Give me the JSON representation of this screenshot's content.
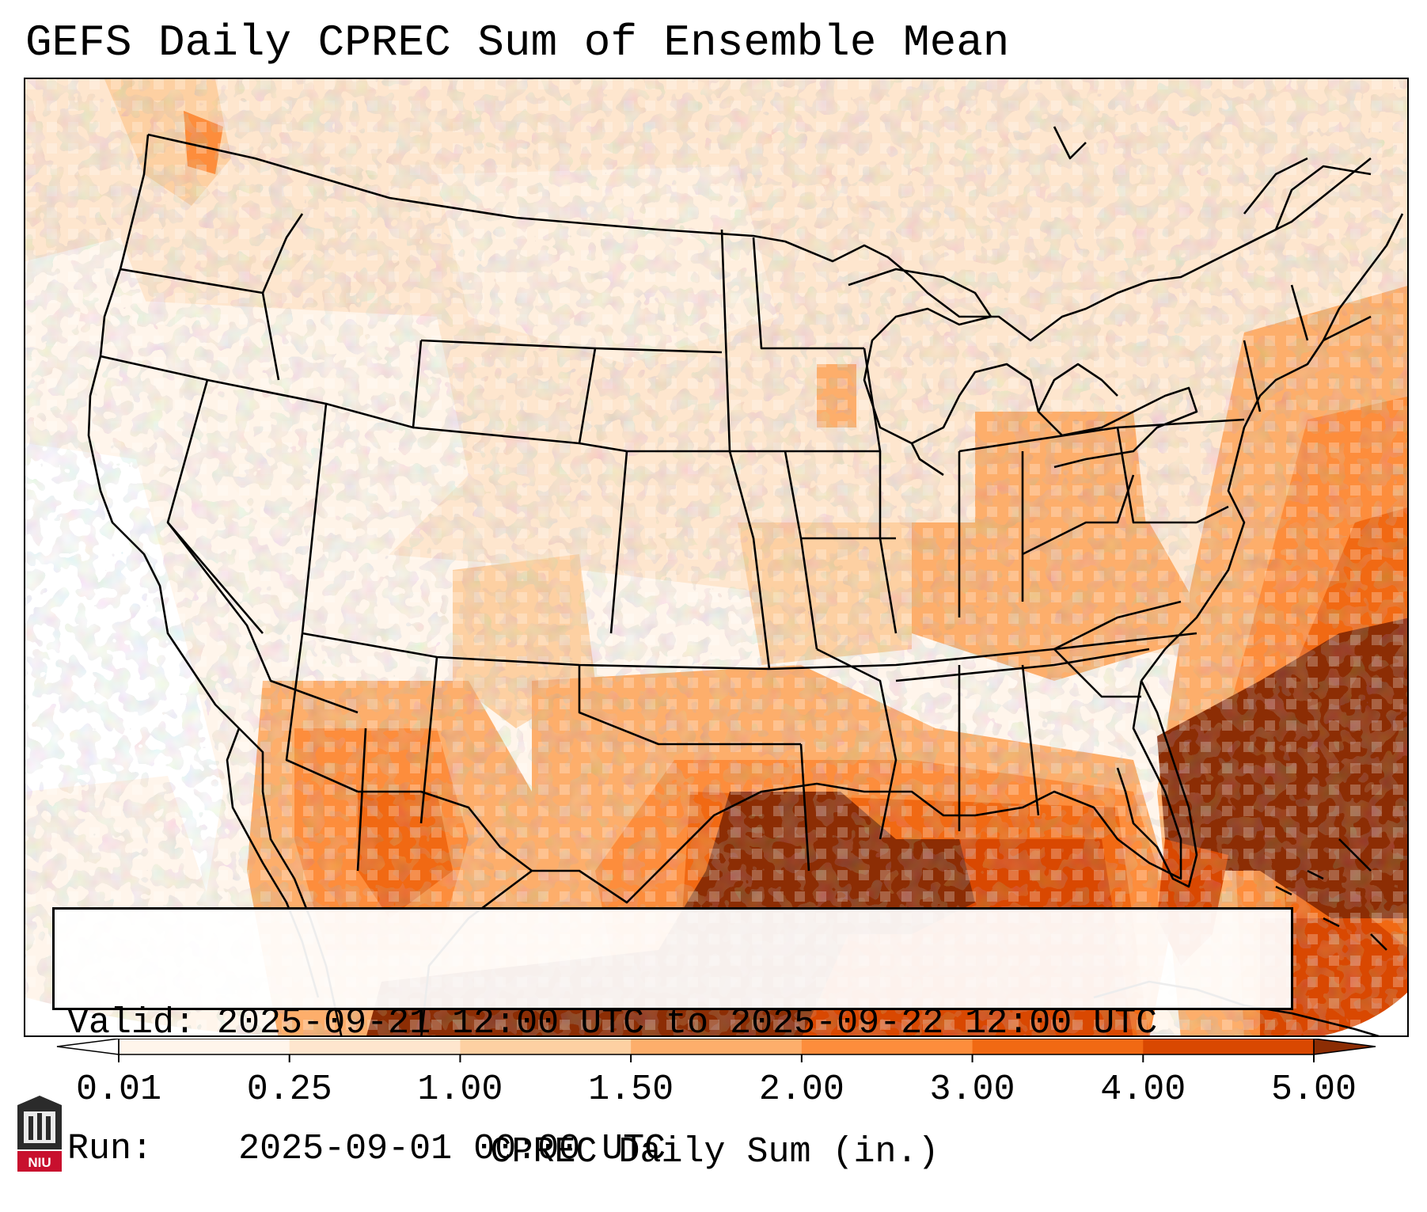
{
  "title": "GEFS Daily CPREC Sum of Ensemble Mean",
  "info": {
    "valid_label": "Valid:",
    "valid_value": "2025-09-21 12:00 UTC to 2025-09-22 12:00 UTC",
    "run_label": "Run:",
    "run_value": "2025-09-01 00:00 UTC"
  },
  "colorbar": {
    "label": "CPREC Daily Sum (in.)",
    "ticks": [
      "0.01",
      "0.25",
      "1.00",
      "1.50",
      "2.00",
      "3.00",
      "4.00",
      "5.00"
    ],
    "bins": [
      {
        "color": "#fff5eb"
      },
      {
        "color": "#fee6ce"
      },
      {
        "color": "#fdd0a2"
      },
      {
        "color": "#fdae6b"
      },
      {
        "color": "#fd8d3c"
      },
      {
        "color": "#f16913"
      },
      {
        "color": "#d94801"
      }
    ],
    "under_color": "#ffffff",
    "over_color": "#8c2d04"
  },
  "map": {
    "region": "Contiguous United States, northern Mexico, Gulf of Mexico, western Atlantic",
    "palette": {
      "very_light": "#fff5eb",
      "light": "#fee6ce",
      "light_orange": "#fdd0a2",
      "orange": "#fdae6b",
      "medium_orange": "#fd8d3c",
      "dark_orange": "#f16913",
      "red_orange": "#d94801",
      "brown": "#8c2d04"
    }
  },
  "logo": {
    "text": "NIU"
  }
}
